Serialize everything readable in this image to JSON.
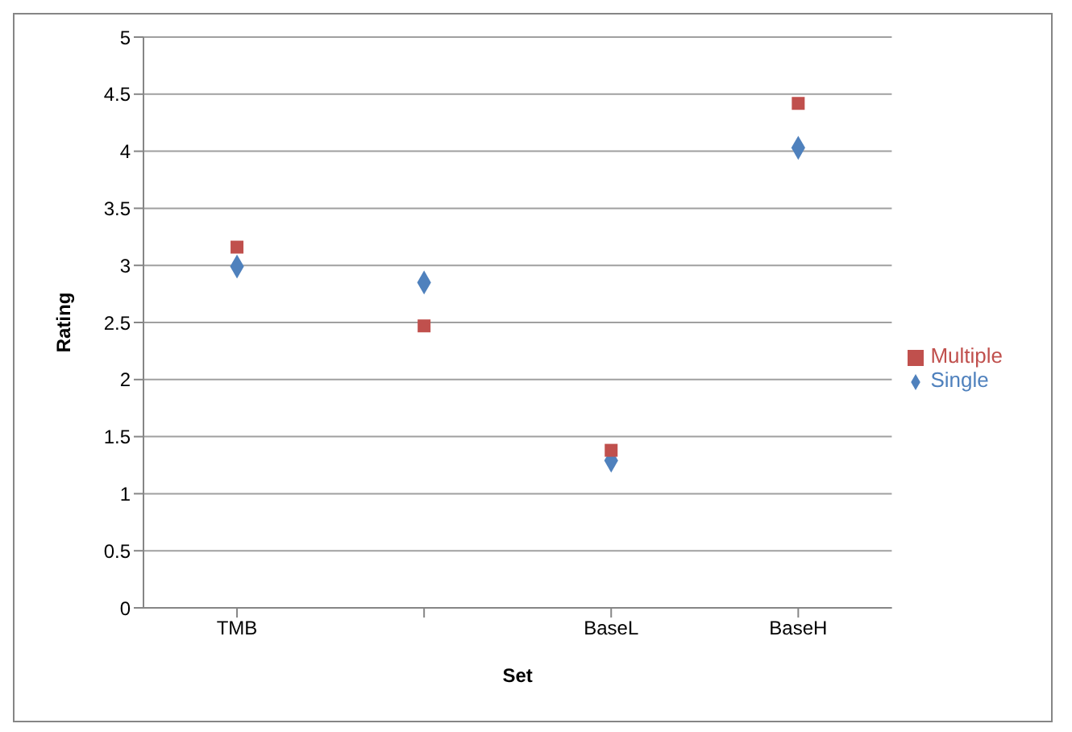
{
  "chart_data": {
    "type": "scatter",
    "xlabel": "Set",
    "ylabel": "Rating",
    "categories": [
      "TMB",
      null,
      "BaseL",
      "BaseH"
    ],
    "series": [
      {
        "name": "Single",
        "color": "#4f81bd",
        "marker": "diamond",
        "values": [
          2.99,
          2.85,
          1.29,
          4.03
        ]
      },
      {
        "name": "Multiple",
        "color": "#c0504d",
        "marker": "square",
        "values": [
          3.16,
          2.47,
          1.38,
          4.42
        ]
      }
    ],
    "ylim": [
      0,
      5
    ],
    "yticks": [
      0,
      0.5,
      1,
      1.5,
      2,
      2.5,
      3,
      3.5,
      4,
      4.5,
      5
    ],
    "grid": "y",
    "legend": "right"
  }
}
